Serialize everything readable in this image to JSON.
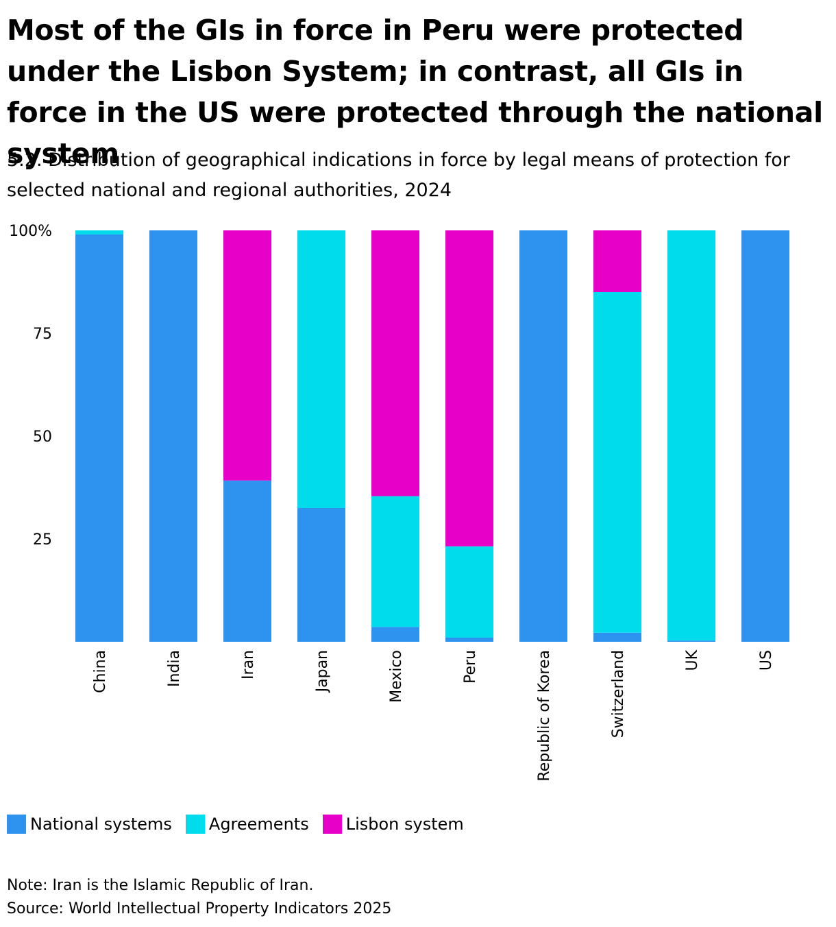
{
  "header": {
    "title": "Most of the GIs in force in Peru were protected under the Lisbon System; in contrast, all GIs in force in the US were protected through the national system",
    "subtitle": "5.2. Distribution of geographical indications in force by legal means of protection for selected national and regional authorities, 2024"
  },
  "chart_data": {
    "type": "bar",
    "stacked": true,
    "categories": [
      "China",
      "India",
      "Iran",
      "Japan",
      "Mexico",
      "Peru",
      "Republic of Korea",
      "Switzerland",
      "UK",
      "US"
    ],
    "series": [
      {
        "name": "National systems",
        "color": "#2e93ee",
        "values": [
          99,
          100,
          39.2,
          32.5,
          3.6,
          1,
          100,
          2.2,
          0.3,
          100
        ]
      },
      {
        "name": "Agreements",
        "color": "#00dcec",
        "values": [
          1,
          0,
          0,
          67.5,
          31.8,
          22.2,
          0,
          82.8,
          99.7,
          0
        ]
      },
      {
        "name": "Lisbon system",
        "color": "#e600c8",
        "values": [
          0,
          0,
          60.8,
          0,
          64.6,
          76.8,
          0,
          15,
          0,
          0
        ]
      }
    ],
    "ylim": [
      0,
      100
    ],
    "yticks": [
      25,
      50,
      75,
      100
    ],
    "ytick_labels": [
      "25",
      "50",
      "75",
      "100%"
    ],
    "legend_position": "bottom-left",
    "grid": false
  },
  "footer": {
    "note": "Note: Iran is the Islamic Republic of Iran.",
    "source": "Source: World Intellectual Property Indicators 2025"
  }
}
